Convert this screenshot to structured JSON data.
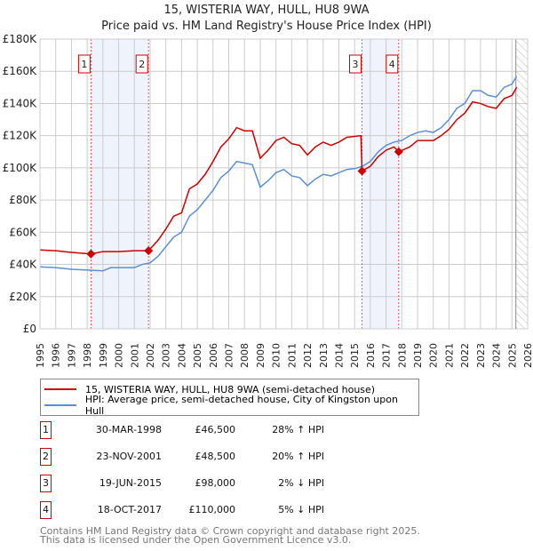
{
  "chart_data": {
    "type": "line",
    "title": "15, WISTERIA WAY, HULL, HU8 9WA",
    "subtitle": "Price paid vs. HM Land Registry's House Price Index (HPI)",
    "ylim": [
      0,
      180000
    ],
    "xlim": [
      1995,
      2026
    ],
    "yticks": [
      "£0",
      "£20K",
      "£40K",
      "£60K",
      "£80K",
      "£100K",
      "£120K",
      "£140K",
      "£160K",
      "£180K"
    ],
    "xticks": [
      "1995",
      "1996",
      "1997",
      "1998",
      "1999",
      "2000",
      "2001",
      "2002",
      "2003",
      "2004",
      "2005",
      "2006",
      "2007",
      "2008",
      "2009",
      "2010",
      "2011",
      "2012",
      "2013",
      "2014",
      "2015",
      "2016",
      "2017",
      "2018",
      "2019",
      "2020",
      "2021",
      "2022",
      "2023",
      "2024",
      "2025",
      "2026"
    ],
    "series": [
      {
        "name": "15, WISTERIA WAY, HULL, HU8 9WA (semi-detached house)",
        "color": "#cc0000",
        "x": [
          1995,
          1996,
          1997,
          1998.24,
          1999,
          2000,
          2001,
          2001.9,
          2002.5,
          2003,
          2003.5,
          2004,
          2004.5,
          2005,
          2005.5,
          2006,
          2006.5,
          2007,
          2007.5,
          2008,
          2008.5,
          2009,
          2009.5,
          2010,
          2010.5,
          2011,
          2011.5,
          2012,
          2012.5,
          2013,
          2013.5,
          2014,
          2014.5,
          2015.4,
          2015.47,
          2016,
          2016.5,
          2017,
          2017.5,
          2017.8,
          2018.5,
          2019,
          2019.5,
          2020,
          2020.5,
          2021,
          2021.5,
          2022,
          2022.5,
          2023,
          2023.5,
          2024,
          2024.5,
          2025,
          2025.3
        ],
        "y": [
          49,
          48.5,
          47.5,
          46.5,
          48,
          48,
          48.5,
          48.5,
          55,
          62,
          70,
          72,
          87,
          90,
          96,
          104,
          113,
          118,
          125,
          123,
          123,
          106,
          111,
          117,
          119,
          115,
          114,
          108,
          113,
          116,
          114,
          116,
          119,
          120,
          98,
          101,
          107,
          111,
          113,
          110,
          113,
          117,
          117,
          117,
          120,
          124,
          130,
          134,
          141,
          140,
          138,
          137,
          143,
          145,
          150
        ]
      },
      {
        "name": "HPI: Average price, semi-detached house, City of Kingston upon Hull",
        "color": "#5b8fd4",
        "x": [
          1995,
          1996,
          1997,
          1998,
          1999,
          1999.5,
          2000,
          2001,
          2001.5,
          2002,
          2002.5,
          2003,
          2003.5,
          2004,
          2004.5,
          2005,
          2005.5,
          2006,
          2006.5,
          2007,
          2007.5,
          2008,
          2008.5,
          2009,
          2009.5,
          2010,
          2010.5,
          2011,
          2011.5,
          2012,
          2012.5,
          2013,
          2013.5,
          2014,
          2014.5,
          2015,
          2015.5,
          2016,
          2016.5,
          2017,
          2017.5,
          2018,
          2018.5,
          2019,
          2019.5,
          2020,
          2020.5,
          2021,
          2021.5,
          2022,
          2022.5,
          2023,
          2023.5,
          2024,
          2024.5,
          2025,
          2025.3
        ],
        "y": [
          38.5,
          38,
          37,
          36.5,
          36,
          38,
          38,
          38,
          40,
          41,
          45,
          51,
          57,
          60,
          70,
          74,
          80,
          86,
          94,
          98,
          104,
          103,
          102,
          88,
          92,
          97,
          99,
          95,
          94,
          89,
          93,
          96,
          95,
          97,
          99,
          99.5,
          101,
          104,
          110,
          114,
          116,
          117,
          120,
          122,
          123,
          122,
          125,
          130,
          137,
          140,
          148,
          148,
          145,
          144,
          150,
          152,
          157
        ]
      }
    ],
    "y_units": "thousands GBP",
    "sales": [
      {
        "n": "1",
        "date": "30-MAR-1998",
        "price": "£46,500",
        "hpi": "28% ↑ HPI",
        "x": 1998.24,
        "y": 46.5
      },
      {
        "n": "2",
        "date": "23-NOV-2001",
        "price": "£48,500",
        "hpi": "20% ↑ HPI",
        "x": 2001.9,
        "y": 48.5
      },
      {
        "n": "3",
        "date": "19-JUN-2015",
        "price": "£98,000",
        "hpi": "2% ↓ HPI",
        "x": 2015.47,
        "y": 98
      },
      {
        "n": "4",
        "date": "18-OCT-2017",
        "price": "£110,000",
        "hpi": "5% ↓ HPI",
        "x": 2017.8,
        "y": 110
      }
    ],
    "shaded": [
      [
        1998.24,
        2001.9
      ],
      [
        2015.47,
        2017.8
      ]
    ],
    "forecast_start": 2025.25
  },
  "footer": [
    "Contains HM Land Registry data © Crown copyright and database right 2025.",
    "This data is licensed under the Open Government Licence v3.0."
  ]
}
